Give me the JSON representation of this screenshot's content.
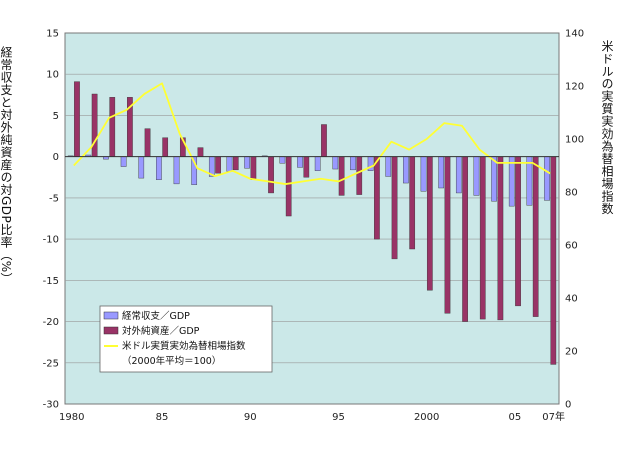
{
  "chart_data": {
    "type": "bar",
    "x": [
      "1980",
      "1981",
      "1982",
      "1983",
      "1984",
      "1985",
      "1986",
      "1987",
      "1988",
      "1989",
      "1990",
      "1991",
      "1992",
      "1993",
      "1994",
      "1995",
      "1996",
      "1997",
      "1998",
      "1999",
      "2000",
      "2001",
      "2002",
      "2003",
      "2004",
      "2005",
      "2006",
      "2007"
    ],
    "x_tick_labels": [
      "1980",
      "85",
      "90",
      "95",
      "2000",
      "05",
      "07年"
    ],
    "x_tick_years": [
      "1980",
      "1985",
      "1990",
      "1995",
      "2000",
      "2005",
      "2007"
    ],
    "ylabel_left": "経常収支と対外純資産の対GDP比率（%）",
    "ylabel_right": "米ドルの実質実効為替相場指数",
    "y_left_lim": [
      -30,
      15
    ],
    "y_left_ticks": [
      15,
      10,
      5,
      0,
      -5,
      -10,
      -15,
      -20,
      -25,
      -30
    ],
    "y_right_lim": [
      0,
      140
    ],
    "y_right_ticks": [
      140,
      120,
      100,
      80,
      60,
      40,
      20,
      0
    ],
    "grid": true,
    "legend_position": "bottom-left",
    "legend_note": "（2000年平均＝100）",
    "series": [
      {
        "name": "経常収支／GDP",
        "type": "bar",
        "axis": "left",
        "color": "#9999ff",
        "values": [
          0.1,
          0.2,
          -0.3,
          -1.2,
          -2.6,
          -2.8,
          -3.3,
          -3.4,
          -2.4,
          -1.8,
          -1.4,
          0.1,
          -0.8,
          -1.3,
          -1.7,
          -1.5,
          -1.6,
          -1.7,
          -2.4,
          -3.2,
          -4.2,
          -3.8,
          -4.4,
          -4.7,
          -5.4,
          -6.0,
          -5.9,
          -5.3
        ]
      },
      {
        "name": "対外純資産／GDP",
        "type": "bar",
        "axis": "left",
        "color": "#993366",
        "values": [
          9.1,
          7.6,
          7.2,
          7.2,
          3.4,
          2.3,
          2.3,
          1.1,
          -2.0,
          -1.6,
          -2.8,
          -4.4,
          -7.2,
          -2.5,
          3.9,
          -4.7,
          -4.6,
          -10.0,
          -12.4,
          -11.2,
          -16.2,
          -19.0,
          -20.0,
          -19.7,
          -19.8,
          -18.1,
          -19.4,
          -25.2
        ]
      },
      {
        "name": "米ドル実質実効為替相場指数",
        "type": "line",
        "axis": "right",
        "color": "#ffff33",
        "values": [
          90,
          97,
          108,
          111,
          117,
          121,
          102,
          89,
          86,
          88,
          85,
          84,
          83,
          84,
          85,
          84,
          87,
          90,
          99,
          96,
          100,
          106,
          105,
          96,
          91,
          91,
          91,
          87
        ]
      }
    ]
  }
}
